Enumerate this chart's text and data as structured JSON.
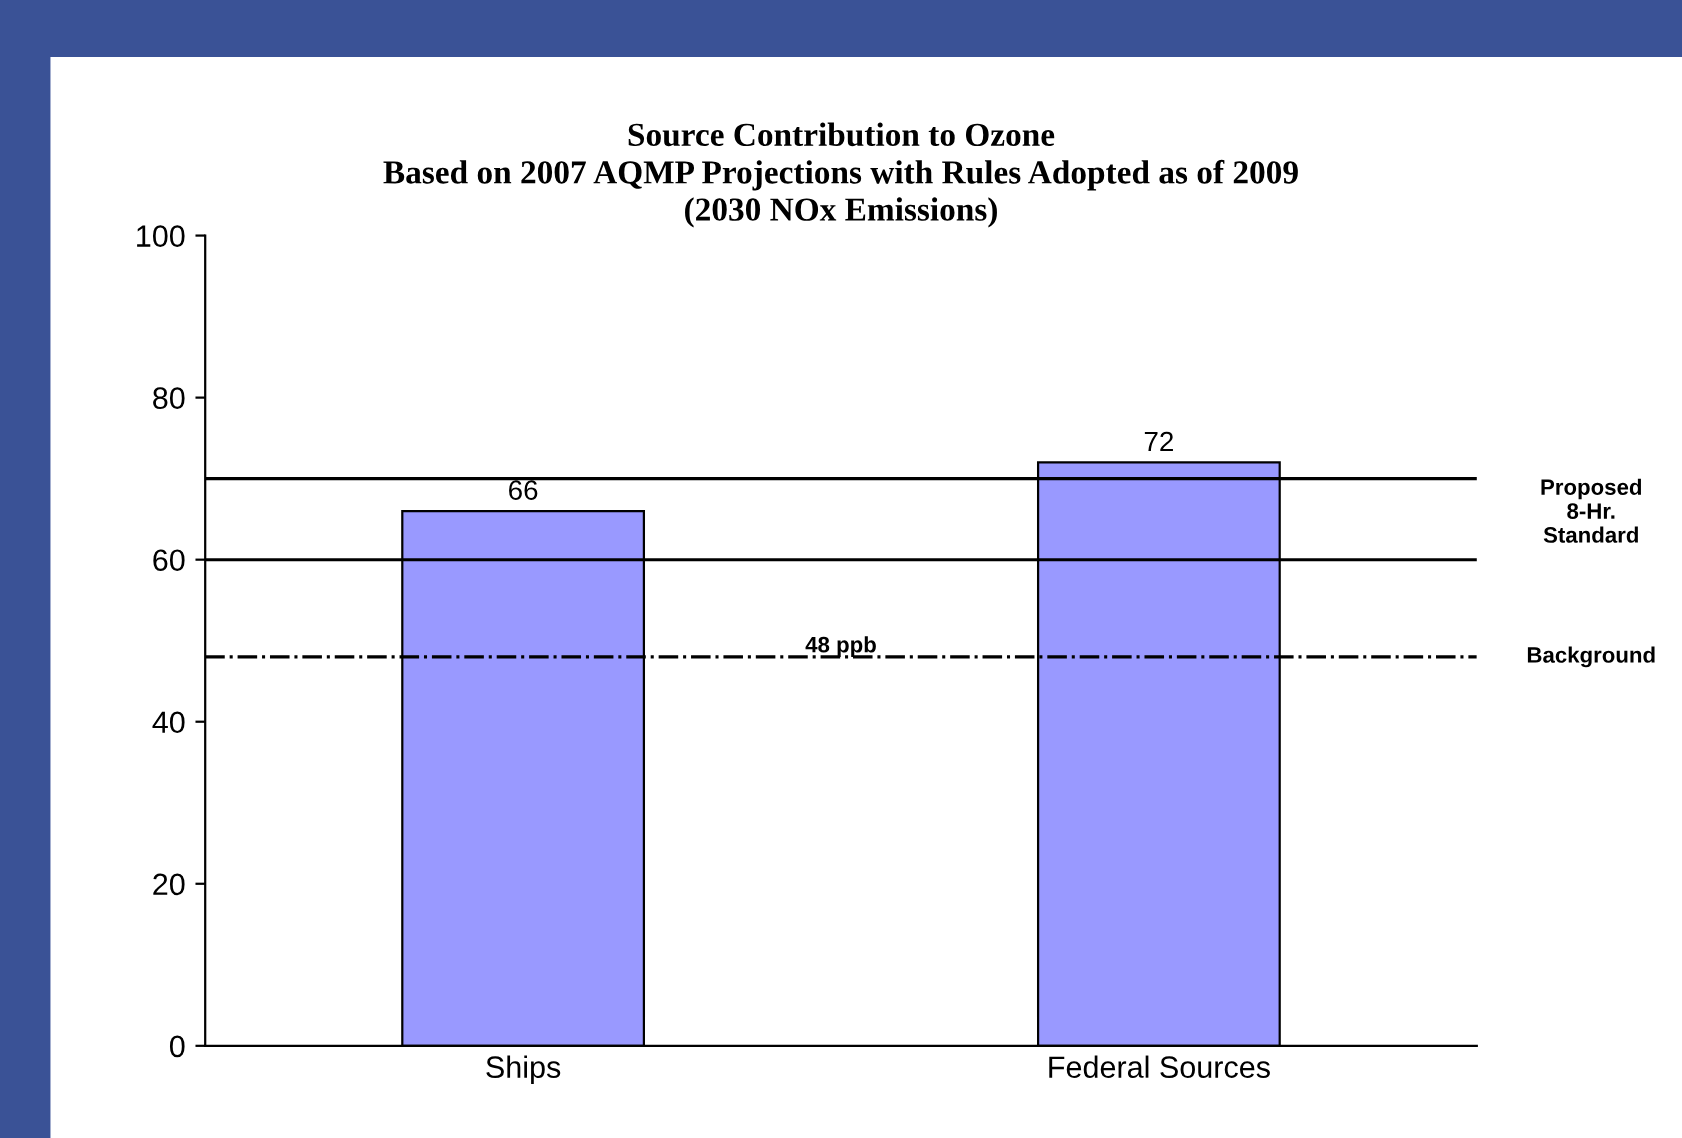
{
  "chart_data": {
    "type": "bar",
    "title": "Source Contribution to Ozone\nBased on 2007 AQMP Projections with Rules Adopted as of 2009\n(2030 NOx Emissions)",
    "categories": [
      "Ships",
      "Federal Sources"
    ],
    "values": [
      66,
      72
    ],
    "color": "#9999ff",
    "ylim": [
      0,
      100
    ],
    "yticks": [
      0,
      20,
      40,
      60,
      80,
      100
    ],
    "grid": false,
    "data_labels": true,
    "legend": false,
    "ref_lines": [
      {
        "axis": "y",
        "value": 70,
        "label": "Proposed\n8-Hr.\nStandard",
        "color": "#000000",
        "line_style": "solid"
      },
      {
        "axis": "y",
        "value": 60,
        "label": null,
        "color": "#000000",
        "line_style": "solid"
      },
      {
        "axis": "y",
        "value": 48,
        "label": "Background",
        "color": "#000000",
        "line_style": "dashdot"
      }
    ],
    "annotations": [
      {
        "text": "48 ppb",
        "y": 48
      }
    ]
  }
}
